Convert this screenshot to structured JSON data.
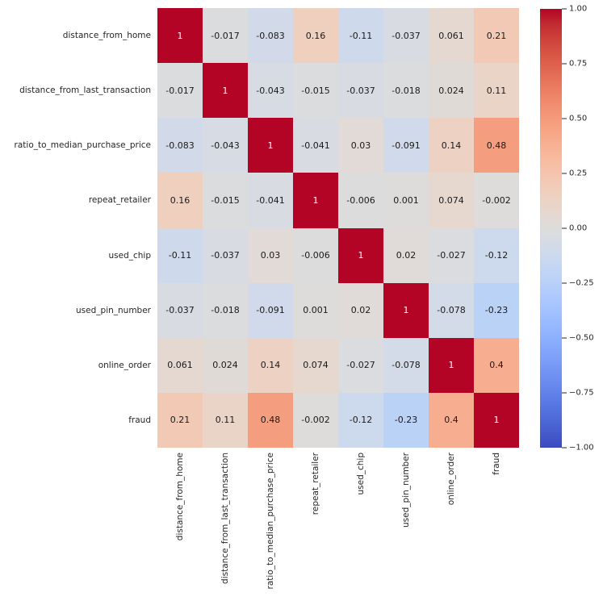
{
  "figure": {
    "background": "#ffffff"
  },
  "chart_data": {
    "type": "heatmap",
    "title": "",
    "xlabel": "",
    "ylabel": "",
    "categories": [
      "distance_from_home",
      "distance_from_last_transaction",
      "ratio_to_median_purchase_price",
      "repeat_retailer",
      "used_chip",
      "used_pin_number",
      "online_order",
      "fraud"
    ],
    "matrix": [
      [
        1,
        -0.017,
        -0.083,
        0.16,
        -0.11,
        -0.037,
        0.061,
        0.21
      ],
      [
        -0.017,
        1,
        -0.043,
        -0.015,
        -0.037,
        -0.018,
        0.024,
        0.11
      ],
      [
        -0.083,
        -0.043,
        1,
        -0.041,
        0.03,
        -0.091,
        0.14,
        0.48
      ],
      [
        0.16,
        -0.015,
        -0.041,
        1,
        -0.006,
        0.001,
        0.074,
        -0.002
      ],
      [
        -0.11,
        -0.037,
        0.03,
        -0.006,
        1,
        0.02,
        -0.027,
        -0.12
      ],
      [
        -0.037,
        -0.018,
        -0.091,
        0.001,
        0.02,
        1,
        -0.078,
        -0.23
      ],
      [
        0.061,
        0.024,
        0.14,
        0.074,
        -0.027,
        -0.078,
        1,
        0.4
      ],
      [
        0.21,
        0.11,
        0.48,
        -0.002,
        -0.12,
        -0.23,
        0.4,
        1
      ]
    ],
    "annotated": true,
    "grid": false,
    "legend": false,
    "colormap": "coolwarm",
    "vmin": -1,
    "vmax": 1,
    "colors": {
      "max": "#b40426",
      "mid": "#dddcdb",
      "min": "#3b4cc0",
      "annotation_dark": "#1a1a1a",
      "annotation_light": "#ffffff",
      "tick_text": "#262626"
    },
    "colorbar": {
      "position": "right",
      "ticks": [
        "1.00",
        "0.75",
        "0.50",
        "0.25",
        "0.00",
        "−0.25",
        "−0.50",
        "−0.75",
        "−1.00"
      ]
    }
  }
}
